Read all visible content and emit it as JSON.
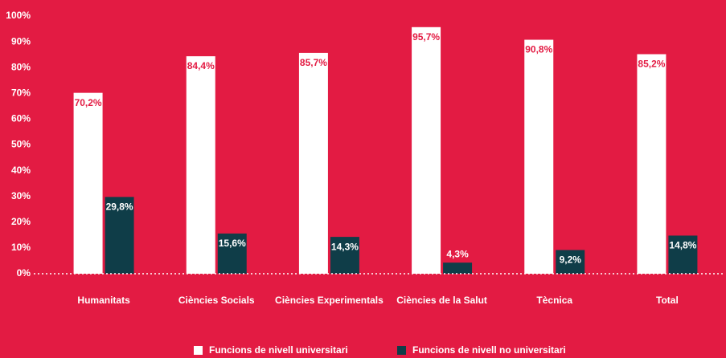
{
  "chart_data": {
    "type": "bar",
    "categories": [
      "Humanitats",
      "Ciències Socials",
      "Ciències Experimentals",
      "Ciències de la Salut",
      "Tècnica",
      "Total"
    ],
    "series": [
      {
        "name": "Funcions de nivell universitari",
        "color": "#ffffff",
        "label_color": "#e31b43",
        "values": [
          70.2,
          84.4,
          85.7,
          95.7,
          90.8,
          85.2
        ],
        "value_labels": [
          "70,2%",
          "84,4%",
          "85,7%",
          "95,7%",
          "90,8%",
          "85,2%"
        ]
      },
      {
        "name": "Funcions de nivell no universitari",
        "color": "#0f3d48",
        "label_color": "#ffffff",
        "values": [
          29.8,
          15.6,
          14.3,
          4.3,
          9.2,
          14.8
        ],
        "value_labels": [
          "29,8%",
          "15,6%",
          "14,3%",
          "4,3%",
          "9,2%",
          "14,8%"
        ]
      }
    ],
    "ylim": [
      0,
      100
    ],
    "yticks": [
      {
        "value": 0,
        "label": "0%"
      },
      {
        "value": 10,
        "label": "10%"
      },
      {
        "value": 20,
        "label": "20%"
      },
      {
        "value": 30,
        "label": "30%"
      },
      {
        "value": 40,
        "label": "40%"
      },
      {
        "value": 50,
        "label": "50%"
      },
      {
        "value": 60,
        "label": "60%"
      },
      {
        "value": 70,
        "label": "70%"
      },
      {
        "value": 80,
        "label": "80%"
      },
      {
        "value": 90,
        "label": "90%"
      },
      {
        "value": 100,
        "label": "100%"
      }
    ],
    "background": "#e31b43",
    "legend": "bottom"
  }
}
